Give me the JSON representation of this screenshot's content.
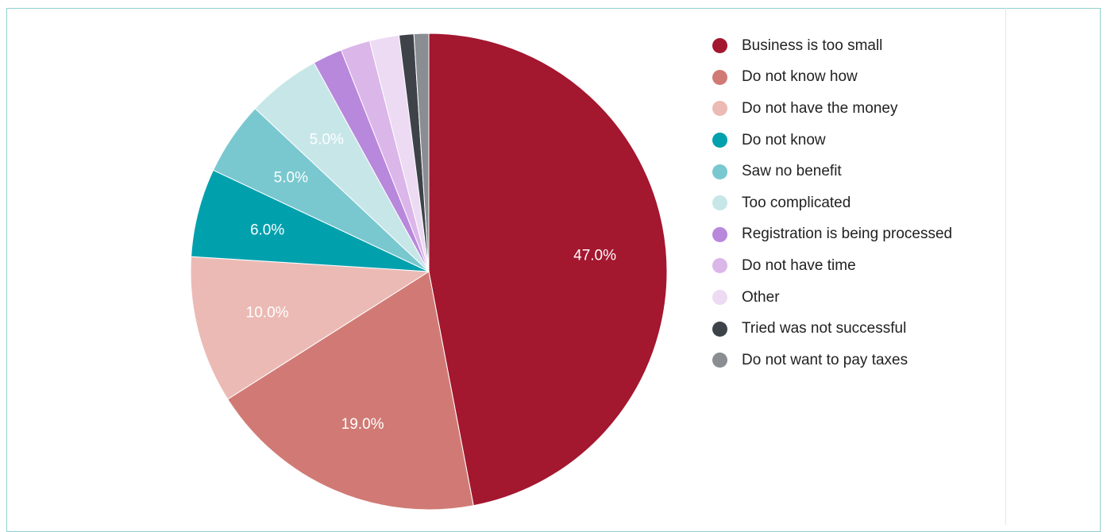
{
  "chart_data": {
    "type": "pie",
    "title": "",
    "slices": [
      {
        "label": "Business is too small",
        "value": 47.0,
        "value_label": "47.0%",
        "color": "#a3172f"
      },
      {
        "label": "Do not know how",
        "value": 19.0,
        "value_label": "19.0%",
        "color": "#d17a75"
      },
      {
        "label": "Do not have the money",
        "value": 10.0,
        "value_label": "10.0%",
        "color": "#ecbab5"
      },
      {
        "label": "Do not know",
        "value": 6.0,
        "value_label": "6.0%",
        "color": "#00a0ad"
      },
      {
        "label": "Saw no benefit",
        "value": 5.0,
        "value_label": "5.0%",
        "color": "#79c8cf"
      },
      {
        "label": "Too complicated",
        "value": 5.0,
        "value_label": "5.0%",
        "color": "#c7e6e8"
      },
      {
        "label": "Registration is being processed",
        "value": 2.0,
        "value_label": "",
        "color": "#b888dc"
      },
      {
        "label": "Do not have time",
        "value": 2.0,
        "value_label": "",
        "color": "#dbb6e9"
      },
      {
        "label": "Other",
        "value": 2.0,
        "value_label": "",
        "color": "#ecdbf3"
      },
      {
        "label": "Tried was not successful",
        "value": 1.0,
        "value_label": "",
        "color": "#3e4349"
      },
      {
        "label": "Do not want to pay taxes",
        "value": 1.0,
        "value_label": "",
        "color": "#8a8d91"
      }
    ],
    "start_angle_deg": 0,
    "direction": "clockwise",
    "legend_position": "right"
  }
}
